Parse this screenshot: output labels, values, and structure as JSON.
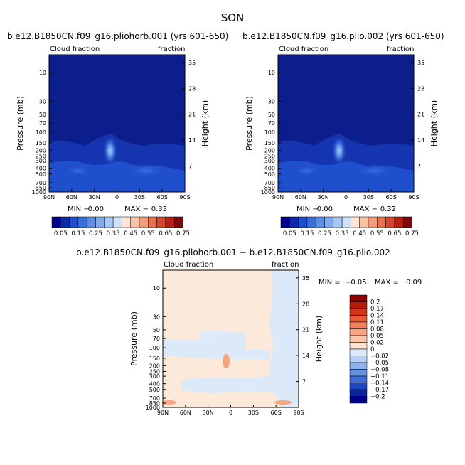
{
  "season": "SON",
  "chart_data": [
    {
      "type": "heatmap",
      "title": "b.e12.B1850CN.f09_g16.pliohorb.001 (yrs 601-650)",
      "left_label": "Cloud fraction",
      "right_label": "fraction",
      "ylabel": "Pressure (mb)",
      "ylabel_right": "Height (km)",
      "x_ticks": [
        "90N",
        "60N",
        "30N",
        "0",
        "30S",
        "60S",
        "90S"
      ],
      "y_ticks": [
        "10",
        "30",
        "50",
        "70",
        "100",
        "150",
        "200",
        "250",
        "300",
        "400",
        "500",
        "700",
        "850",
        "1000"
      ],
      "y2_ticks": [
        "35",
        "28",
        "21",
        "14",
        "7"
      ],
      "min_label": "MIN =",
      "min": "0.00",
      "max_label": "MAX =",
      "max": "0.33",
      "colorbar_labels": [
        "0.05",
        "0.15",
        "0.25",
        "0.35",
        "0.45",
        "0.55",
        "0.65",
        "0.75"
      ]
    },
    {
      "type": "heatmap",
      "title": "b.e12.B1850CN.f09_g16.plio.002 (yrs 601-650)",
      "left_label": "Cloud fraction",
      "right_label": "fraction",
      "ylabel": "Pressure (mb)",
      "ylabel_right": "Height (km)",
      "x_ticks": [
        "90N",
        "60N",
        "30N",
        "0",
        "30S",
        "60S",
        "90S"
      ],
      "y_ticks": [
        "10",
        "30",
        "50",
        "70",
        "100",
        "150",
        "200",
        "250",
        "300",
        "400",
        "500",
        "700",
        "850",
        "1000"
      ],
      "y2_ticks": [
        "35",
        "28",
        "21",
        "14",
        "7"
      ],
      "min_label": "MIN =",
      "min": "0.00",
      "max_label": "MAX =",
      "max": "0.32",
      "colorbar_labels": [
        "0.05",
        "0.15",
        "0.25",
        "0.35",
        "0.45",
        "0.55",
        "0.65",
        "0.75"
      ]
    },
    {
      "type": "heatmap",
      "title": "b.e12.B1850CN.f09_g16.pliohorb.001 − b.e12.B1850CN.f09_g16.plio.002",
      "left_label": "Cloud fraction",
      "right_label": "fraction",
      "ylabel": "Pressure (mb)",
      "ylabel_right": "Height (km)",
      "x_ticks": [
        "90N",
        "60N",
        "30N",
        "0",
        "30S",
        "60S",
        "90S"
      ],
      "y_ticks": [
        "10",
        "30",
        "50",
        "70",
        "100",
        "150",
        "200",
        "250",
        "300",
        "400",
        "500",
        "700",
        "850",
        "1000"
      ],
      "y2_ticks": [
        "35",
        "28",
        "21",
        "14",
        "7"
      ],
      "min_label": "MIN =",
      "min": "−0.05",
      "max_label": "MAX =",
      "max": "0.09",
      "colorbar_labels": [
        "0.2",
        "0.17",
        "0.14",
        "0.11",
        "0.08",
        "0.05",
        "0.02",
        "0",
        "−0.02",
        "−0.05",
        "−0.08",
        "−0.11",
        "−0.14",
        "−0.17",
        "−0.2"
      ]
    }
  ],
  "colors": {
    "seq": [
      "#00008f",
      "#0a2aa6",
      "#1f4fcc",
      "#3a6fe0",
      "#5b8ee8",
      "#7eaaf0",
      "#a8c8f5",
      "#d0e2f8",
      "#fde6d6",
      "#f9c4a6",
      "#f39c7a",
      "#e8704f",
      "#d8452c",
      "#b81f14",
      "#7a0a0a"
    ],
    "div": [
      "#8b0000",
      "#b51a0a",
      "#d63218",
      "#ea5a38",
      "#f3805c",
      "#f7a483",
      "#fbc5a8",
      "#fde4d2",
      "#dbe9f8",
      "#b6d1f3",
      "#8fb4ec",
      "#6691e3",
      "#3f6bd8",
      "#1f47c2",
      "#0a24a0",
      "#00008b"
    ],
    "panel_bg": "#0b1e8c",
    "diff_bg": "#fde9d9"
  }
}
